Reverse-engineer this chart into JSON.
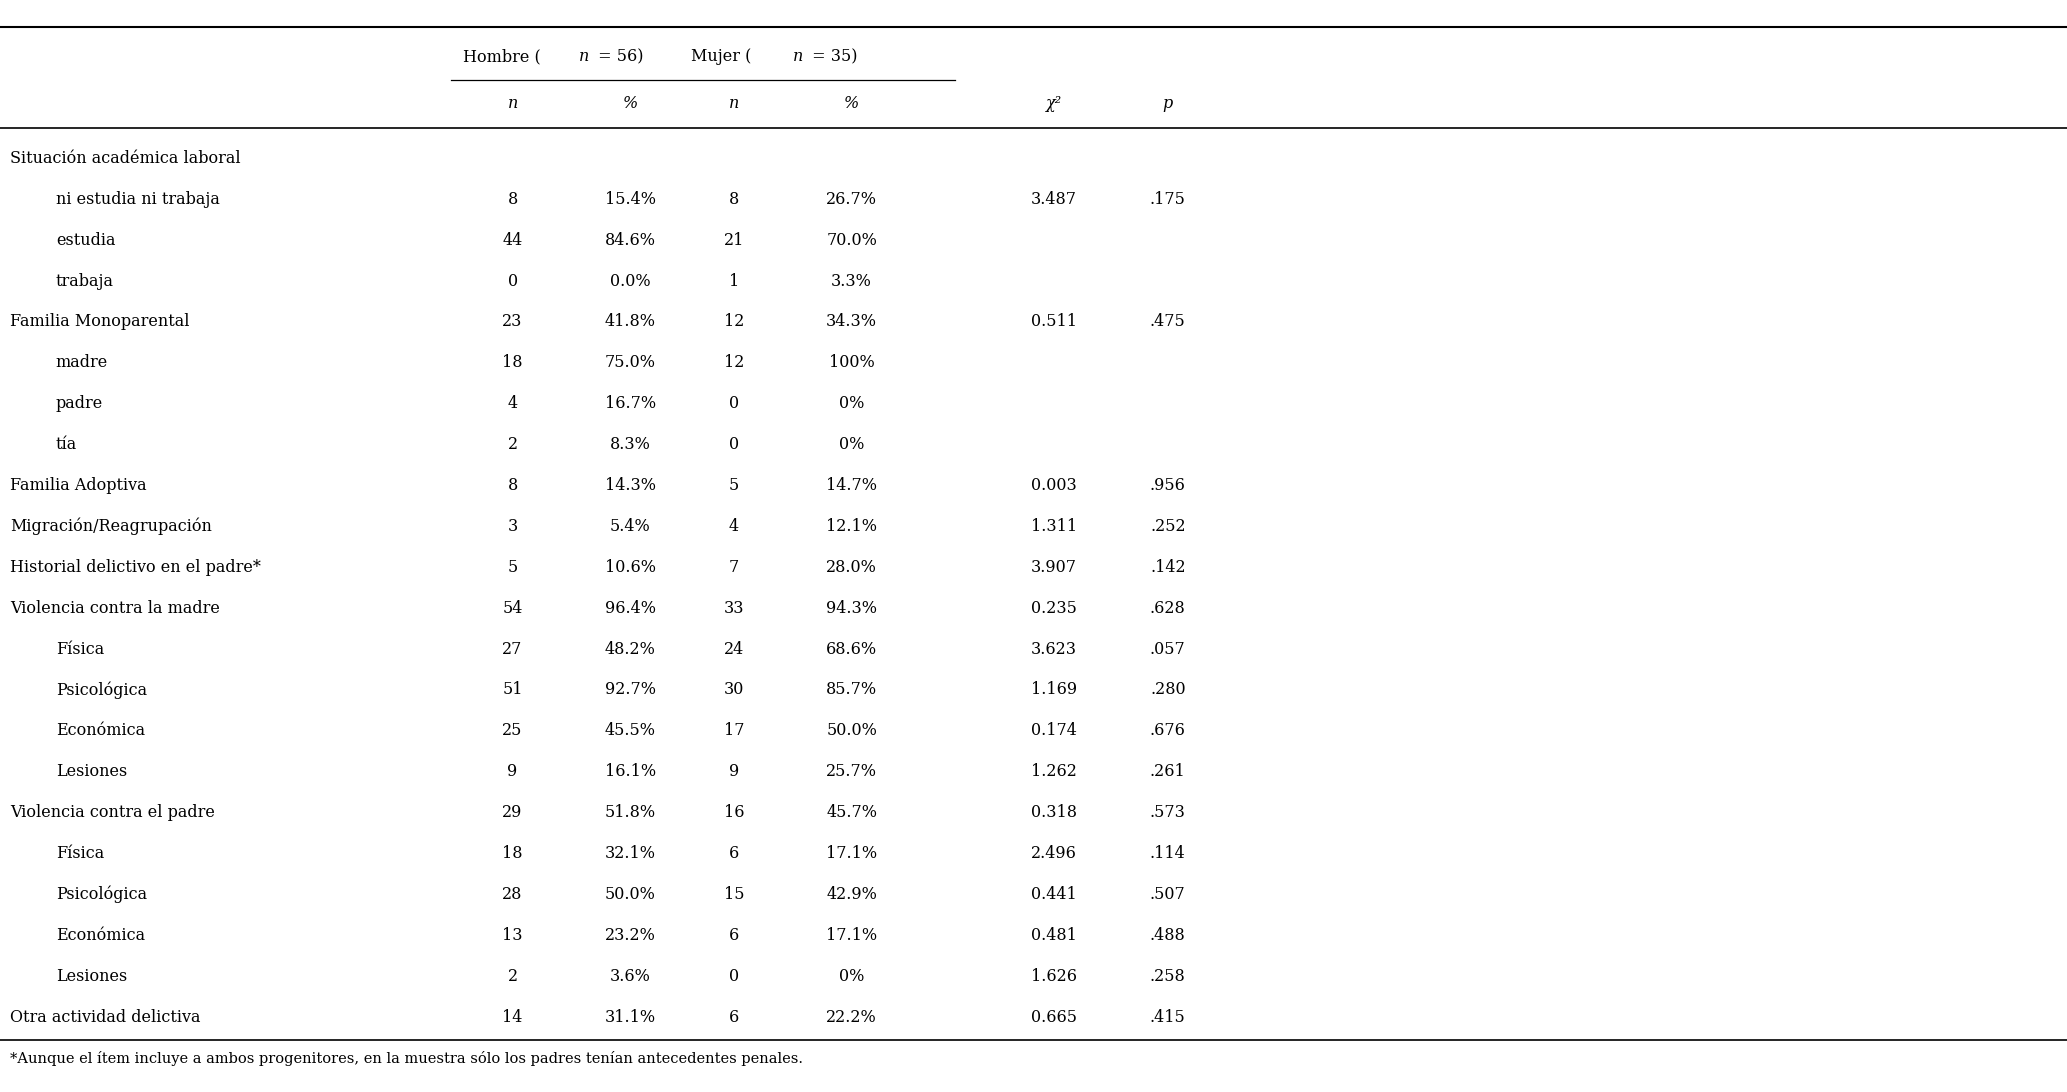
{
  "footnote": "*Aunque el ítem incluye a ambos progenitores, en la muestra sólo los padres tenían antecedentes penales.",
  "rows": [
    {
      "label": "Situación académica laboral",
      "indent": 0,
      "h_n": "",
      "h_pct": "",
      "m_n": "",
      "m_pct": "",
      "chi2": "",
      "p": ""
    },
    {
      "label": "ni estudia ni trabaja",
      "indent": 1,
      "h_n": "8",
      "h_pct": "15.4%",
      "m_n": "8",
      "m_pct": "26.7%",
      "chi2": "3.487",
      "p": ".175"
    },
    {
      "label": "estudia",
      "indent": 1,
      "h_n": "44",
      "h_pct": "84.6%",
      "m_n": "21",
      "m_pct": "70.0%",
      "chi2": "",
      "p": ""
    },
    {
      "label": "trabaja",
      "indent": 1,
      "h_n": "0",
      "h_pct": "0.0%",
      "m_n": "1",
      "m_pct": "3.3%",
      "chi2": "",
      "p": ""
    },
    {
      "label": "Familia Monoparental",
      "indent": 0,
      "h_n": "23",
      "h_pct": "41.8%",
      "m_n": "12",
      "m_pct": "34.3%",
      "chi2": "0.511",
      "p": ".475"
    },
    {
      "label": "madre",
      "indent": 1,
      "h_n": "18",
      "h_pct": "75.0%",
      "m_n": "12",
      "m_pct": "100%",
      "chi2": "",
      "p": ""
    },
    {
      "label": "padre",
      "indent": 1,
      "h_n": "4",
      "h_pct": "16.7%",
      "m_n": "0",
      "m_pct": "0%",
      "chi2": "",
      "p": ""
    },
    {
      "label": "tía",
      "indent": 1,
      "h_n": "2",
      "h_pct": "8.3%",
      "m_n": "0",
      "m_pct": "0%",
      "chi2": "",
      "p": ""
    },
    {
      "label": "Familia Adoptiva",
      "indent": 0,
      "h_n": "8",
      "h_pct": "14.3%",
      "m_n": "5",
      "m_pct": "14.7%",
      "chi2": "0.003",
      "p": ".956"
    },
    {
      "label": "Migración/Reagrupación",
      "indent": 0,
      "h_n": "3",
      "h_pct": "5.4%",
      "m_n": "4",
      "m_pct": "12.1%",
      "chi2": "1.311",
      "p": ".252"
    },
    {
      "label": "Historial delictivo en el padre*",
      "indent": 0,
      "h_n": "5",
      "h_pct": "10.6%",
      "m_n": "7",
      "m_pct": "28.0%",
      "chi2": "3.907",
      "p": ".142"
    },
    {
      "label": "Violencia contra la madre",
      "indent": 0,
      "h_n": "54",
      "h_pct": "96.4%",
      "m_n": "33",
      "m_pct": "94.3%",
      "chi2": "0.235",
      "p": ".628"
    },
    {
      "label": "Física",
      "indent": 1,
      "h_n": "27",
      "h_pct": "48.2%",
      "m_n": "24",
      "m_pct": "68.6%",
      "chi2": "3.623",
      "p": ".057"
    },
    {
      "label": "Psicológica",
      "indent": 1,
      "h_n": "51",
      "h_pct": "92.7%",
      "m_n": "30",
      "m_pct": "85.7%",
      "chi2": "1.169",
      "p": ".280"
    },
    {
      "label": "Económica",
      "indent": 1,
      "h_n": "25",
      "h_pct": "45.5%",
      "m_n": "17",
      "m_pct": "50.0%",
      "chi2": "0.174",
      "p": ".676"
    },
    {
      "label": "Lesiones",
      "indent": 1,
      "h_n": "9",
      "h_pct": "16.1%",
      "m_n": "9",
      "m_pct": "25.7%",
      "chi2": "1.262",
      "p": ".261"
    },
    {
      "label": "Violencia contra el padre",
      "indent": 0,
      "h_n": "29",
      "h_pct": "51.8%",
      "m_n": "16",
      "m_pct": "45.7%",
      "chi2": "0.318",
      "p": ".573"
    },
    {
      "label": "Física",
      "indent": 1,
      "h_n": "18",
      "h_pct": "32.1%",
      "m_n": "6",
      "m_pct": "17.1%",
      "chi2": "2.496",
      "p": ".114"
    },
    {
      "label": "Psicológica",
      "indent": 1,
      "h_n": "28",
      "h_pct": "50.0%",
      "m_n": "15",
      "m_pct": "42.9%",
      "chi2": "0.441",
      "p": ".507"
    },
    {
      "label": "Económica",
      "indent": 1,
      "h_n": "13",
      "h_pct": "23.2%",
      "m_n": "6",
      "m_pct": "17.1%",
      "chi2": "0.481",
      "p": ".488"
    },
    {
      "label": "Lesiones",
      "indent": 1,
      "h_n": "2",
      "h_pct": "3.6%",
      "m_n": "0",
      "m_pct": "0%",
      "chi2": "1.626",
      "p": ".258"
    },
    {
      "label": "Otra actividad delictiva",
      "indent": 0,
      "h_n": "14",
      "h_pct": "31.1%",
      "m_n": "6",
      "m_pct": "22.2%",
      "chi2": "0.665",
      "p": ".415"
    }
  ],
  "bg_color": "#ffffff",
  "text_color": "#000000",
  "figsize": [
    20.67,
    10.92
  ],
  "dpi": 100
}
